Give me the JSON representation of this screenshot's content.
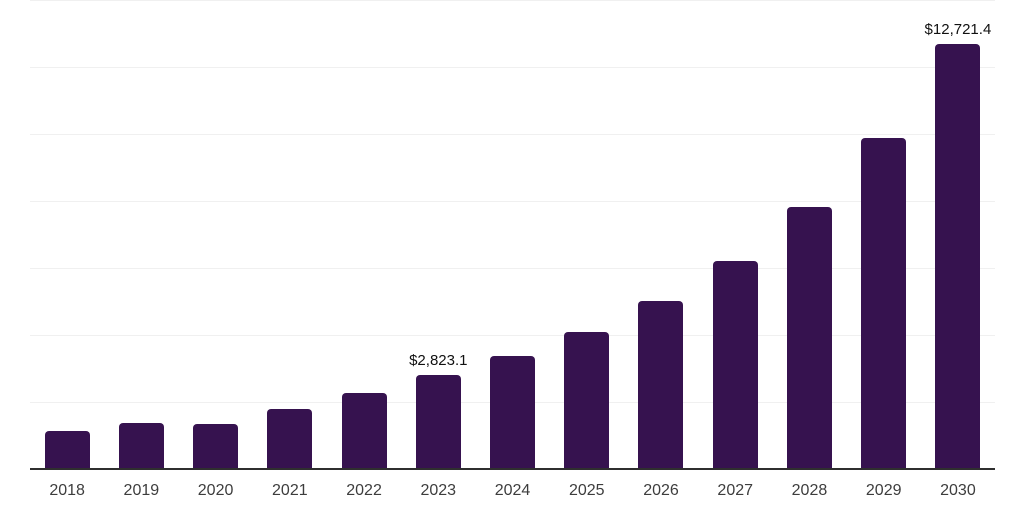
{
  "chart_data": {
    "type": "bar",
    "title": "",
    "xlabel": "",
    "ylabel": "",
    "categories": [
      "2018",
      "2019",
      "2020",
      "2021",
      "2022",
      "2023",
      "2024",
      "2025",
      "2026",
      "2027",
      "2028",
      "2029",
      "2030"
    ],
    "values": [
      1150,
      1400,
      1380,
      1810,
      2290,
      2823.1,
      3390,
      4110,
      5050,
      6230,
      7840,
      9920,
      12721.4
    ],
    "data_labels": [
      "",
      "",
      "",
      "",
      "",
      "$2,823.1",
      "",
      "",
      "",
      "",
      "",
      "",
      "$12,721.4"
    ],
    "ylim": [
      0,
      14000
    ],
    "gridline_interval": 2000,
    "grid": "horizontal-only",
    "legend": "none",
    "y_tick_labels_visible": false,
    "colors": {
      "bar": "#36124F",
      "gridline": "#f0f0f0",
      "axis_line": "#2f2f2f",
      "x_tick_label": "#3d3d3d",
      "data_label": "#111111",
      "background": "#ffffff"
    }
  }
}
